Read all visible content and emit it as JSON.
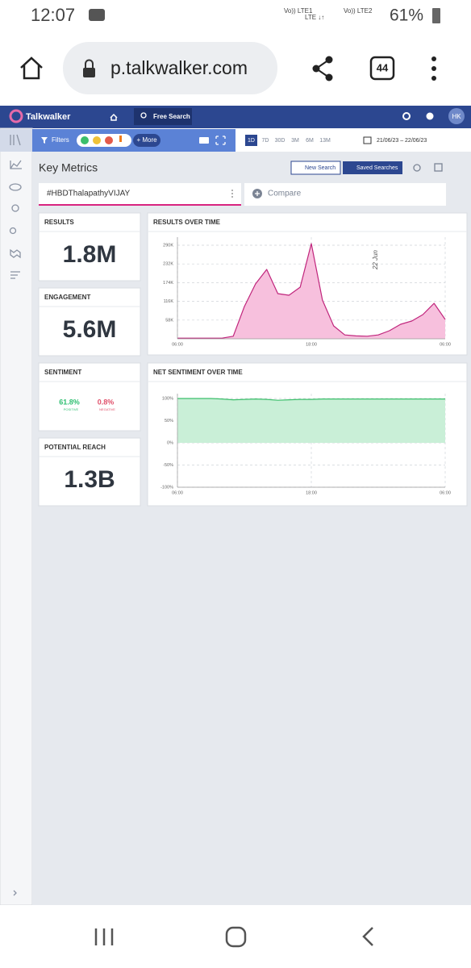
{
  "status_bar": {
    "time": "12:07",
    "network": [
      "Vo)) LTE1",
      "LTE ↓↑",
      "Vo)) LTE2"
    ],
    "battery": "61%"
  },
  "browser": {
    "url": "p.talkwalker.com",
    "tabs": "44"
  },
  "app_header": {
    "brand": "Talkwalker",
    "search": "Free Search",
    "user": "HK"
  },
  "toolbar": {
    "filters": "Filters",
    "more": "+ More",
    "ranges": [
      "1D",
      "7D",
      "30D",
      "3M",
      "6M",
      "13M"
    ],
    "date_range": "21/06/23 – 22/06/23"
  },
  "page": {
    "title": "Key Metrics",
    "new_search": "New Search",
    "saved_searches": "Saved Searches",
    "query": "#HBDThalapathyVIJAY",
    "compare": "Compare"
  },
  "metrics": [
    {
      "label": "RESULTS",
      "value": "1.8M"
    },
    {
      "label": "ENGAGEMENT",
      "value": "5.6M"
    },
    {
      "label": "POTENTIAL REACH",
      "value": "1.3B"
    }
  ],
  "sentiment": {
    "label": "SENTIMENT",
    "positive": "61.8%",
    "positive_label": "POSITIVE",
    "negative": "0.8%",
    "negative_label": "NEGATIVE"
  },
  "chart_data": [
    {
      "type": "area",
      "title": "RESULTS OVER TIME",
      "annotation": "22 Jun",
      "categories": [
        "06:00",
        null,
        null,
        null,
        null,
        null,
        null,
        null,
        null,
        null,
        null,
        null,
        "18:00",
        null,
        null,
        null,
        null,
        null,
        null,
        null,
        null,
        null,
        null,
        null,
        "06:00"
      ],
      "series": [
        {
          "name": "#HBDThalapathyVIJAY",
          "color": "#c0257c",
          "fill": "#f7c0dd",
          "values": [
            2000,
            2000,
            2000,
            2000,
            2000,
            8000,
            100000,
            170000,
            215000,
            140000,
            135000,
            160000,
            295000,
            120000,
            40000,
            12000,
            9000,
            8000,
            12000,
            25000,
            45000,
            55000,
            75000,
            110000,
            60000
          ]
        }
      ],
      "ylim": [
        0,
        300000
      ],
      "yticks": [
        {
          "value": 58000,
          "label": "58K"
        },
        {
          "value": 116000,
          "label": "116K"
        },
        {
          "value": 174000,
          "label": "174K"
        },
        {
          "value": 232000,
          "label": "232K"
        },
        {
          "value": 290000,
          "label": "290K"
        }
      ],
      "grid": true
    },
    {
      "type": "area",
      "title": "NET SENTIMENT OVER TIME",
      "categories": [
        "06:00",
        null,
        null,
        null,
        null,
        null,
        null,
        null,
        null,
        null,
        null,
        null,
        "18:00",
        null,
        null,
        null,
        null,
        null,
        null,
        null,
        null,
        null,
        null,
        null,
        "06:00"
      ],
      "series": [
        {
          "name": "Net sentiment",
          "color": "#3cbf6b",
          "fill": "#c9efd7",
          "values": [
            100,
            100,
            100,
            100,
            99,
            97,
            98,
            99,
            98,
            96,
            97,
            98,
            98,
            99,
            99,
            99,
            99,
            99,
            99,
            99,
            99,
            99,
            99,
            99,
            99
          ]
        }
      ],
      "ylim": [
        -100,
        100
      ],
      "yticks": [
        {
          "value": -100,
          "label": "-100%"
        },
        {
          "value": -50,
          "label": "-50%"
        },
        {
          "value": 0,
          "label": "0%"
        },
        {
          "value": 50,
          "label": "50%"
        },
        {
          "value": 100,
          "label": "100%"
        }
      ],
      "grid": true
    }
  ]
}
